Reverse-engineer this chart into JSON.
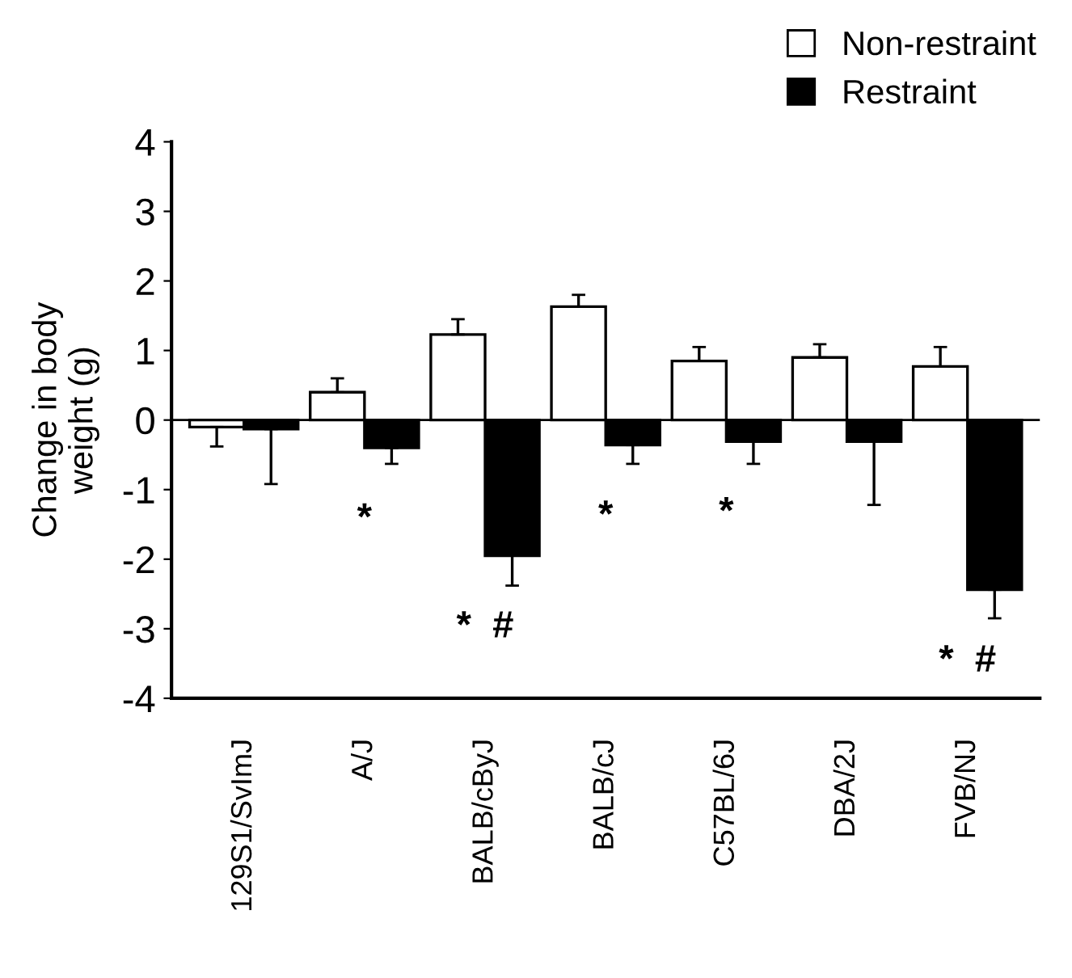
{
  "chart_data": {
    "type": "bar",
    "ylabel": "Change in body\nweight (g)",
    "categories": [
      "129S1/SvImJ",
      "A/J",
      "BALB/cByJ",
      "BALB/cJ",
      "C57BL/6J",
      "DBA/2J",
      "FVB/NJ"
    ],
    "series": [
      {
        "name": "Non-restraint",
        "color": "#ffffff",
        "values": [
          -0.1,
          0.4,
          1.23,
          1.63,
          0.85,
          0.9,
          0.77
        ],
        "errors": [
          [
            -0.38,
            -0.1
          ],
          [
            0.4,
            0.6
          ],
          [
            1.23,
            1.45
          ],
          [
            1.63,
            1.8
          ],
          [
            0.85,
            1.05
          ],
          [
            0.9,
            1.09
          ],
          [
            0.77,
            1.05
          ]
        ]
      },
      {
        "name": "Restraint",
        "color": "#000000",
        "values": [
          -0.13,
          -0.4,
          -1.95,
          -0.36,
          -0.31,
          -0.31,
          -2.44
        ],
        "errors": [
          [
            -0.92,
            -0.13
          ],
          [
            -0.63,
            -0.4
          ],
          [
            -2.38,
            -1.95
          ],
          [
            -0.63,
            -0.36
          ],
          [
            -0.63,
            -0.31
          ],
          [
            -1.22,
            -0.31
          ],
          [
            -2.85,
            -2.44
          ]
        ]
      }
    ],
    "ylim": [
      -4,
      4
    ],
    "yticks": [
      -4,
      -3,
      -2,
      -1,
      0,
      1,
      2,
      3,
      4
    ],
    "grid": false,
    "legend": "top right",
    "ref_lines": [
      {
        "axis": "y",
        "value": 0
      }
    ],
    "annotations": [
      {
        "text": "*",
        "x": "A/J",
        "y": -0.4
      },
      {
        "text": "*  #",
        "x": "BALB/cByJ",
        "y": -1.95
      },
      {
        "text": "*",
        "x": "BALB/cJ",
        "y": -0.36
      },
      {
        "text": "*",
        "x": "C57BL/6J",
        "y": -0.31
      },
      {
        "text": "*  #",
        "x": "FVB/NJ",
        "y": -2.44
      }
    ]
  }
}
